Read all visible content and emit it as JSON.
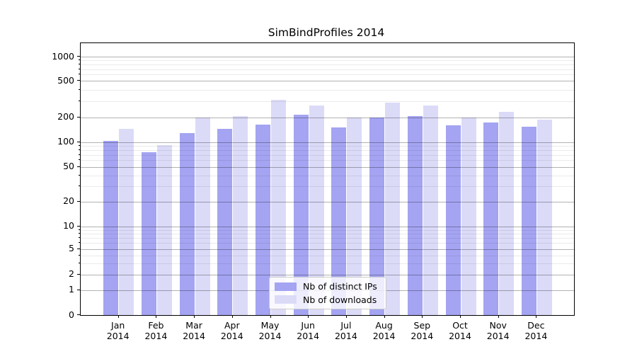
{
  "chart_data": {
    "type": "bar",
    "title": "SimBindProfiles 2014",
    "categories": [
      {
        "month": "Jan",
        "year": "2014"
      },
      {
        "month": "Feb",
        "year": "2014"
      },
      {
        "month": "Mar",
        "year": "2014"
      },
      {
        "month": "Apr",
        "year": "2014"
      },
      {
        "month": "May",
        "year": "2014"
      },
      {
        "month": "Jun",
        "year": "2014"
      },
      {
        "month": "Jul",
        "year": "2014"
      },
      {
        "month": "Aug",
        "year": "2014"
      },
      {
        "month": "Sep",
        "year": "2014"
      },
      {
        "month": "Oct",
        "year": "2014"
      },
      {
        "month": "Nov",
        "year": "2014"
      },
      {
        "month": "Dec",
        "year": "2014"
      }
    ],
    "series": [
      {
        "name": "Nb of distinct IPs",
        "color": "#a4a4f2",
        "values": [
          104,
          75,
          128,
          145,
          162,
          215,
          149,
          200,
          205,
          159,
          172,
          154
        ]
      },
      {
        "name": "Nb of downloads",
        "color": "#dbdbf8",
        "values": [
          145,
          92,
          200,
          205,
          310,
          270,
          198,
          290,
          270,
          198,
          230,
          188
        ]
      }
    ],
    "xlabel": "",
    "ylabel": "",
    "yscale": "quasi-log (log above 1, linear 0-1)",
    "ylim": [
      0,
      1500
    ],
    "y_major_ticks": [
      0,
      1,
      2,
      5,
      10,
      20,
      50,
      100,
      200,
      500,
      1000
    ],
    "y_minor_ticks": [
      3,
      4,
      6,
      7,
      8,
      9,
      30,
      40,
      60,
      70,
      80,
      90,
      300,
      400,
      600,
      700,
      800,
      900
    ],
    "grid": "horizontal major and minor gridlines",
    "legend_position": "lower center"
  }
}
